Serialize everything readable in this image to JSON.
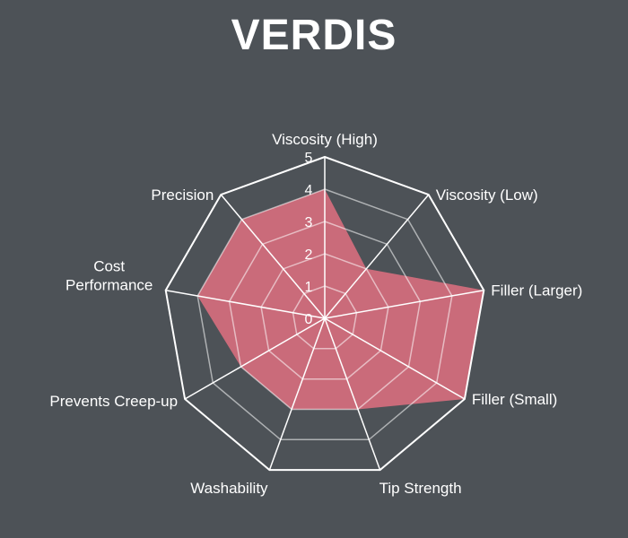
{
  "chart_data": {
    "type": "radar",
    "title": "VERDIS",
    "axes": [
      [
        "Viscosity (High)"
      ],
      [
        "Viscosity (Low)"
      ],
      [
        "Filler (Larger)"
      ],
      [
        "Filler (Small)"
      ],
      [
        "Tip Strength"
      ],
      [
        "Washability"
      ],
      [
        "Prevents Creep-up"
      ],
      [
        "Cost",
        "Performance"
      ],
      [
        "Precision"
      ]
    ],
    "range": [
      0,
      5
    ],
    "ticks": [
      "0",
      "1",
      "2",
      "3",
      "4",
      "5"
    ],
    "series": [
      {
        "values": [
          4,
          2,
          5,
          5,
          3,
          3,
          3,
          4,
          4
        ],
        "color": "#e07080"
      }
    ],
    "grid": true
  }
}
